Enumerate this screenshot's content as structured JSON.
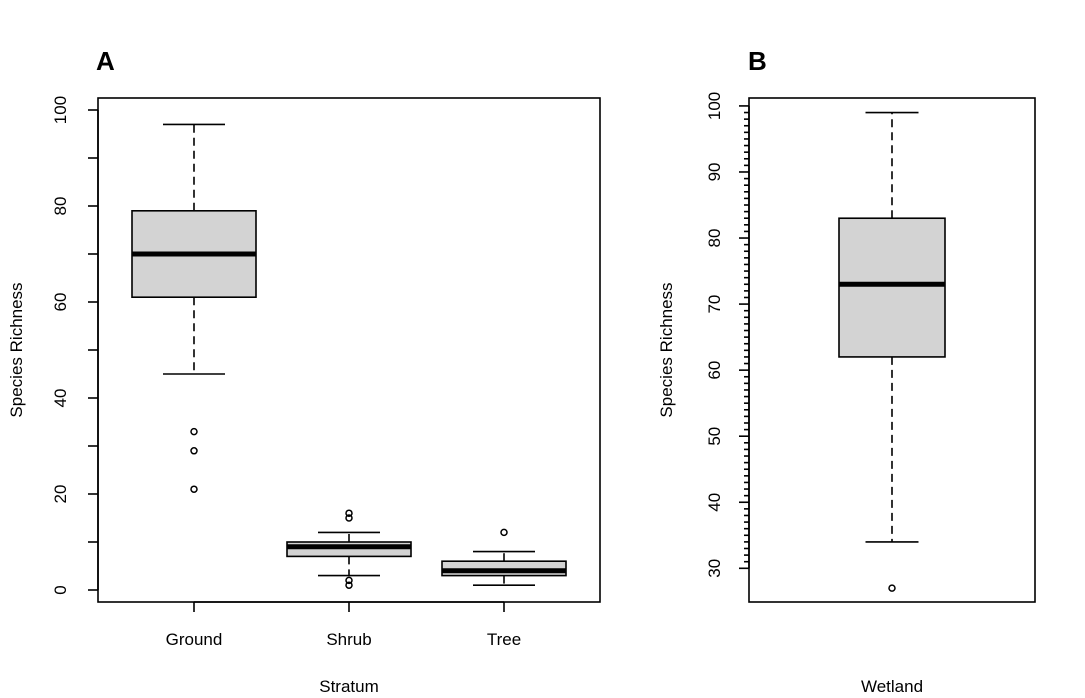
{
  "chart_data": [
    {
      "type": "boxplot",
      "panel_label": "A",
      "xlabel": "Stratum",
      "ylabel": "Species Richness",
      "ylim": [
        -2.5,
        102.5
      ],
      "yticks": [
        0,
        20,
        40,
        60,
        80,
        100
      ],
      "yminor": [
        10,
        30,
        50,
        70,
        90
      ],
      "categories": [
        "Ground",
        "Shrub",
        "Tree"
      ],
      "boxes": [
        {
          "name": "Ground",
          "whisker_low": 45,
          "q1": 61,
          "median": 70,
          "q3": 79,
          "whisker_high": 97,
          "outliers": [
            33,
            29,
            21
          ]
        },
        {
          "name": "Shrub",
          "whisker_low": 3,
          "q1": 7,
          "median": 9,
          "q3": 10,
          "whisker_high": 12,
          "outliers": [
            16,
            15,
            2,
            1
          ]
        },
        {
          "name": "Tree",
          "whisker_low": 1,
          "q1": 3,
          "median": 4,
          "q3": 6,
          "whisker_high": 8,
          "outliers": [
            12
          ]
        }
      ]
    },
    {
      "type": "boxplot",
      "panel_label": "B",
      "xlabel": "Wetland",
      "ylabel": "Species Richness",
      "ylim": [
        24.9,
        101.2
      ],
      "yticks": [
        30,
        40,
        50,
        60,
        70,
        80,
        90,
        100
      ],
      "yminor_step": 1,
      "categories": [
        ""
      ],
      "boxes": [
        {
          "name": "Wetland",
          "whisker_low": 34,
          "q1": 62,
          "median": 73,
          "q3": 83,
          "whisker_high": 99,
          "outliers": [
            27
          ]
        }
      ]
    }
  ]
}
